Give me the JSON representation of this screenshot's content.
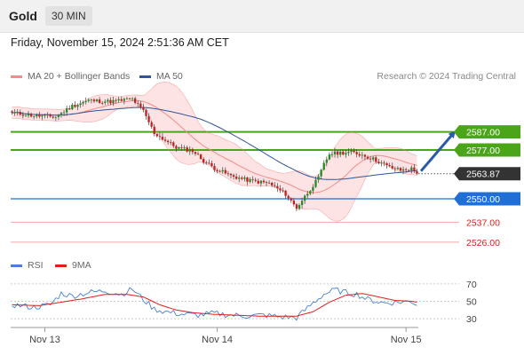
{
  "header": {
    "instrument": "Gold",
    "timeframe": "30 MIN",
    "datetime": "Friday, November 15, 2024 2:51:36 AM CET",
    "credit": "Research © 2024 Trading Central"
  },
  "legend": {
    "bollinger": "MA 20 + Bollinger Bands",
    "ma50": "MA 50",
    "rsi": "RSI",
    "rsi_ma": "9MA"
  },
  "colors": {
    "bollinger": "#f28b8b",
    "band_fill": "#fde3e3",
    "ma50": "#2f5597",
    "resistance": "#4aa519",
    "pivot": "#1f6fd6",
    "support": "#f4a9a9",
    "support_text": "#d62020",
    "current": "#333333",
    "arrow": "#2b5ba8",
    "rsi": "#4a7fd6",
    "rsi_ma": "#e01e1e",
    "candle_up": "#2a8a2a",
    "candle_down": "#c42020"
  },
  "chart_data": [
    {
      "type": "candlestick",
      "title": "Gold",
      "timeframe": "30 MIN",
      "y_range": [
        2521,
        2605
      ],
      "x_ticks": [
        "Nov 13",
        "Nov 14",
        "Nov 15"
      ],
      "levels": [
        {
          "label": "2587.00",
          "value": 2587.0,
          "kind": "resistance"
        },
        {
          "label": "2577.00",
          "value": 2577.0,
          "kind": "resistance"
        },
        {
          "label": "2563.87",
          "value": 2563.87,
          "kind": "current"
        },
        {
          "label": "2550.00",
          "value": 2550.0,
          "kind": "pivot"
        },
        {
          "label": "2537.00",
          "value": 2537.0,
          "kind": "support"
        },
        {
          "label": "2526.00",
          "value": 2526.0,
          "kind": "support"
        }
      ],
      "close_path": [
        [
          0,
          2597.6
        ],
        [
          8,
          2596.0
        ],
        [
          16,
          2595.3
        ],
        [
          22,
          2601.4
        ],
        [
          28,
          2604.4
        ],
        [
          36,
          2603.8
        ],
        [
          44,
          2605.2
        ],
        [
          48,
          2598.5
        ],
        [
          52,
          2586.3
        ],
        [
          60,
          2578.4
        ],
        [
          66,
          2576.6
        ],
        [
          70,
          2571.0
        ],
        [
          74,
          2566.9
        ],
        [
          80,
          2562.7
        ],
        [
          86,
          2560.3
        ],
        [
          94,
          2558.5
        ],
        [
          100,
          2552.5
        ],
        [
          104,
          2544.9
        ],
        [
          108,
          2553.3
        ],
        [
          112,
          2561.5
        ],
        [
          114,
          2569.1
        ],
        [
          116,
          2574.8
        ],
        [
          120,
          2575.5
        ],
        [
          124,
          2575.7
        ],
        [
          128,
          2574.3
        ],
        [
          132,
          2572.0
        ],
        [
          138,
          2567.5
        ],
        [
          142,
          2565.8
        ],
        [
          146,
          2566.6
        ],
        [
          148,
          2563.9
        ]
      ],
      "series": [
        {
          "name": "MA 20 + Bollinger Bands"
        },
        {
          "name": "MA 50"
        }
      ],
      "forecast_arrow": {
        "from": 2563.87,
        "to": 2587.0
      }
    },
    {
      "type": "line",
      "title": "RSI",
      "y_range": [
        25,
        75
      ],
      "y_ticks": [
        70,
        50,
        30
      ],
      "series": [
        {
          "name": "RSI"
        },
        {
          "name": "9MA"
        }
      ],
      "rsi_path": [
        [
          0,
          46
        ],
        [
          8,
          43
        ],
        [
          14,
          46
        ],
        [
          18,
          59
        ],
        [
          22,
          56
        ],
        [
          28,
          60
        ],
        [
          34,
          62
        ],
        [
          40,
          58
        ],
        [
          44,
          64
        ],
        [
          48,
          52
        ],
        [
          52,
          41
        ],
        [
          56,
          38
        ],
        [
          62,
          35
        ],
        [
          68,
          34
        ],
        [
          74,
          36
        ],
        [
          80,
          34
        ],
        [
          86,
          33
        ],
        [
          92,
          34
        ],
        [
          98,
          32
        ],
        [
          104,
          31
        ],
        [
          110,
          48
        ],
        [
          114,
          58
        ],
        [
          118,
          63
        ],
        [
          122,
          60
        ],
        [
          126,
          58
        ],
        [
          130,
          52
        ],
        [
          136,
          48
        ],
        [
          142,
          49
        ],
        [
          146,
          50
        ],
        [
          148,
          46
        ]
      ],
      "rsi_ma_path": [
        [
          0,
          46
        ],
        [
          10,
          45
        ],
        [
          18,
          49
        ],
        [
          26,
          53
        ],
        [
          34,
          58
        ],
        [
          42,
          58
        ],
        [
          48,
          55
        ],
        [
          54,
          46
        ],
        [
          60,
          40
        ],
        [
          66,
          37
        ],
        [
          74,
          35
        ],
        [
          82,
          34
        ],
        [
          90,
          33
        ],
        [
          98,
          33
        ],
        [
          104,
          33
        ],
        [
          110,
          38
        ],
        [
          116,
          49
        ],
        [
          122,
          57
        ],
        [
          128,
          59
        ],
        [
          134,
          55
        ],
        [
          140,
          51
        ],
        [
          146,
          50
        ],
        [
          148,
          49
        ]
      ]
    }
  ]
}
